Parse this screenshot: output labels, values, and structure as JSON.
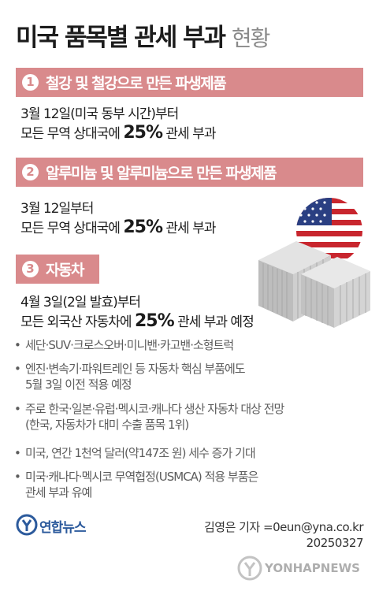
{
  "title": {
    "main": "미국 품목별 관세 부과",
    "sub": "현황"
  },
  "sections": [
    {
      "number": "1",
      "label": "철강 및 철강으로 만든 파생제품",
      "line1": "3월 12일(미국 동부 시간)부터",
      "line2_prefix": "모든 무역 상대국에",
      "line2_rate": "25%",
      "line2_suffix": "관세 부과"
    },
    {
      "number": "2",
      "label": "알루미늄 및 알루미늄으로 만든 파생제품",
      "line1": "3월 12일부터",
      "line2_prefix": "모든 무역 상대국에",
      "line2_rate": "25%",
      "line2_suffix": "관세 부과"
    },
    {
      "number": "3",
      "label": "자동차",
      "line1": "4월 3일(2일 발효)부터",
      "line2_prefix": "모든 외국산 자동차에",
      "line2_rate": "25%",
      "line2_suffix": "관세 부과 예정"
    }
  ],
  "bullets": [
    {
      "lines": [
        "세단·SUV·크로스오버·미니밴·카고밴·소형트럭"
      ]
    },
    {
      "lines": [
        "엔진·변속기·파워트레인 등 자동차 핵심 부품에도",
        "5월 3일 이전 적용 예정"
      ]
    },
    {
      "lines": [
        "주로 한국·일본·유럽·멕시코·캐나다 생산 자동차 대상 전망",
        "(한국, 자동차가 대미 수출 품목 1위)"
      ]
    },
    {
      "lines": [
        "미국, 연간 1천억 달러(약147조 원) 세수 증가 기대"
      ]
    },
    {
      "lines": [
        "미국·캐나다·멕시코 무역협정(USMCA) 적용 부품은",
        "관세 부과 유예"
      ]
    }
  ],
  "bullet_marker": "•",
  "footer": {
    "logo_text": "연합뉴스",
    "credit": "김영은 기자 =0eun@yna.co.kr",
    "date": "20250327",
    "watermark": "YONHAPNEWS"
  },
  "colors": {
    "band": "#d98a8c",
    "band_dark": "#b02a3a",
    "logo_blue": "#2c5a9c"
  }
}
